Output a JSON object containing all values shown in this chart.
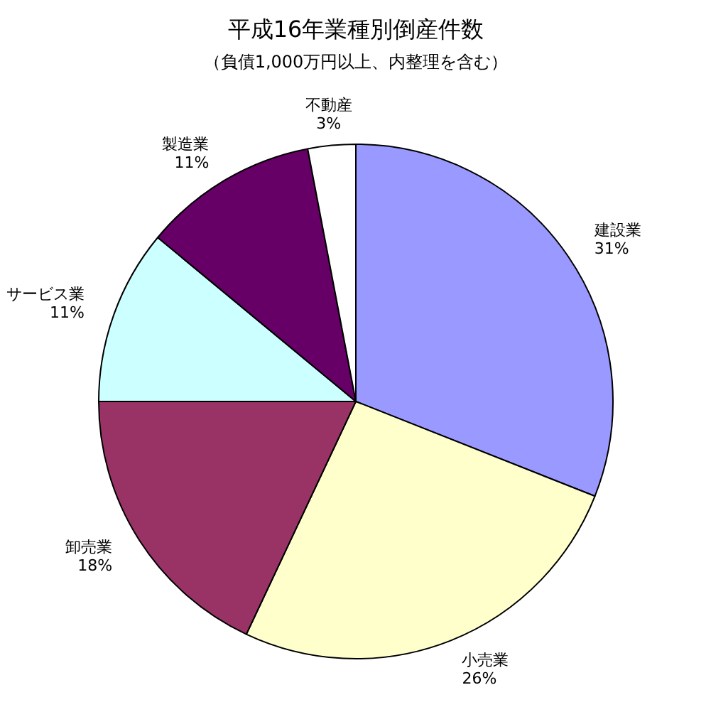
{
  "chart_data": {
    "type": "pie",
    "title": "平成16年業種別倒産件数",
    "subtitle": "（負債1,000万円以上、内整理を含む）",
    "categories": [
      "建設業",
      "小売業",
      "卸売業",
      "サービス業",
      "製造業",
      "不動産"
    ],
    "values": [
      31,
      26,
      18,
      11,
      11,
      3
    ],
    "value_labels": [
      "31%",
      "26%",
      "18%",
      "11%",
      "11%",
      "3%"
    ],
    "colors": [
      "#9999ff",
      "#ffffcc",
      "#993366",
      "#ccffff",
      "#660066",
      "#ffffff"
    ]
  }
}
